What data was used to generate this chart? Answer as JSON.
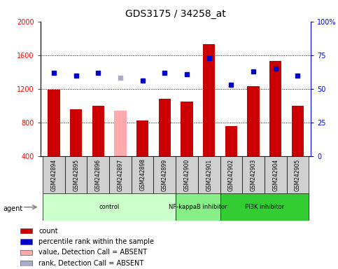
{
  "title": "GDS3175 / 34258_at",
  "samples": [
    "GSM242894",
    "GSM242895",
    "GSM242896",
    "GSM242897",
    "GSM242898",
    "GSM242899",
    "GSM242900",
    "GSM242901",
    "GSM242902",
    "GSM242903",
    "GSM242904",
    "GSM242905"
  ],
  "bar_values": [
    1190,
    960,
    1000,
    940,
    820,
    1080,
    1050,
    1730,
    760,
    1230,
    1530,
    1000
  ],
  "bar_absent": [
    false,
    false,
    false,
    true,
    false,
    false,
    false,
    false,
    false,
    false,
    false,
    false
  ],
  "rank_values": [
    62,
    60,
    62,
    58,
    56,
    62,
    61,
    73,
    53,
    63,
    65,
    60
  ],
  "rank_absent": [
    false,
    false,
    false,
    true,
    false,
    false,
    false,
    false,
    false,
    false,
    false,
    false
  ],
  "bar_color_normal": "#cc0000",
  "bar_color_absent": "#ffaaaa",
  "rank_color_normal": "#0000cc",
  "rank_color_absent": "#aaaacc",
  "ylim_left": [
    400,
    2000
  ],
  "ylim_right": [
    0,
    100
  ],
  "yticks_left": [
    400,
    800,
    1200,
    1600,
    2000
  ],
  "yticks_right": [
    0,
    25,
    50,
    75,
    100
  ],
  "groups": [
    {
      "label": "control",
      "start": 0,
      "end": 6,
      "color": "#ccffcc"
    },
    {
      "label": "NF-kappaB inhibitor",
      "start": 6,
      "end": 8,
      "color": "#88ee88"
    },
    {
      "label": "PI3K inhibitor",
      "start": 8,
      "end": 12,
      "color": "#33cc33"
    }
  ],
  "legend_items": [
    {
      "label": "count",
      "color": "#cc0000"
    },
    {
      "label": "percentile rank within the sample",
      "color": "#0000cc"
    },
    {
      "label": "value, Detection Call = ABSENT",
      "color": "#ffaaaa"
    },
    {
      "label": "rank, Detection Call = ABSENT",
      "color": "#aaaacc"
    }
  ],
  "agent_label": "agent",
  "bar_width": 0.55,
  "figsize": [
    4.83,
    3.84
  ],
  "dpi": 100
}
